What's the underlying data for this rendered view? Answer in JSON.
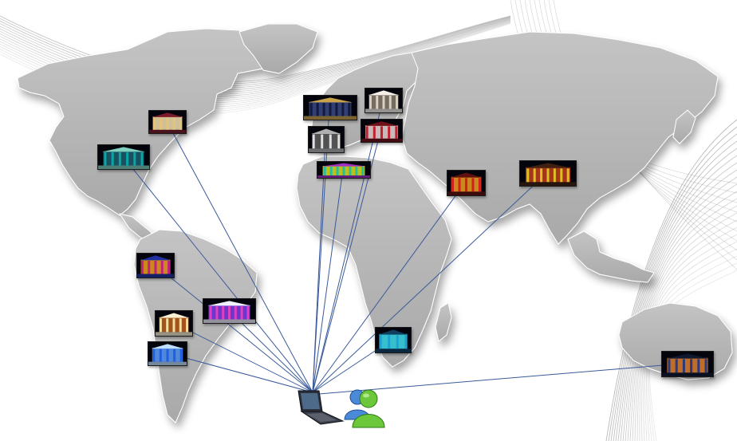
{
  "scene": {
    "background": "#ffffff",
    "map_color": "#b7b7b7",
    "map_border_color": "#ffffff",
    "swoosh_color": "#8c8c8c",
    "link_color": "#3a5a9a"
  },
  "hub": {
    "device_icon": "laptop-icon",
    "user_icon": "messenger-users-icon"
  },
  "locations": [
    {
      "id": "usa-east",
      "palette": [
        "#e6c27a",
        "#f3e3b0",
        "#7a1a2a"
      ],
      "subject": "lit-classical-facade"
    },
    {
      "id": "usa-south",
      "palette": [
        "#0aa5a5",
        "#1d5f70",
        "#7fd0c0"
      ],
      "subject": "teal-lit-building"
    },
    {
      "id": "europe-north",
      "palette": [
        "#131a3a",
        "#3a4a8a",
        "#c9a24a"
      ],
      "subject": "night-skyline"
    },
    {
      "id": "europe-center",
      "palette": [
        "#d8d0c0",
        "#8a8070",
        "#f4f0e8"
      ],
      "subject": "stone-archway"
    },
    {
      "id": "europe-west",
      "palette": [
        "#e0e0e0",
        "#606060",
        "#b0b0b0"
      ],
      "subject": "arched-colonnade"
    },
    {
      "id": "europe-south",
      "palette": [
        "#c02030",
        "#f0d8d8",
        "#701018"
      ],
      "subject": "red-columned-temple"
    },
    {
      "id": "mediterranean",
      "palette": [
        "#20c0a0",
        "#e0e020",
        "#a030c0"
      ],
      "subject": "colorful-projection"
    },
    {
      "id": "middle-east",
      "palette": [
        "#d02020",
        "#f0a020",
        "#601010"
      ],
      "subject": "red-lit-facade"
    },
    {
      "id": "india",
      "palette": [
        "#e0c020",
        "#c04020",
        "#402010"
      ],
      "subject": "golden-palace"
    },
    {
      "id": "south-america-north",
      "palette": [
        "#c02080",
        "#f0a020",
        "#2030a0"
      ],
      "subject": "multicolor-church"
    },
    {
      "id": "brazil",
      "palette": [
        "#e040c0",
        "#8040f0",
        "#f0f0ff"
      ],
      "subject": "purple-lit-building"
    },
    {
      "id": "south-america-west",
      "palette": [
        "#f0e0a0",
        "#c06020",
        "#f8f0d0"
      ],
      "subject": "warm-facade"
    },
    {
      "id": "south-america-south",
      "palette": [
        "#2060e0",
        "#60a0ff",
        "#c0e0ff"
      ],
      "subject": "blue-cathedral"
    },
    {
      "id": "south-africa",
      "palette": [
        "#20a0d0",
        "#40e0f0",
        "#104060"
      ],
      "subject": "cyan-fountain"
    },
    {
      "id": "australia",
      "palette": [
        "#2a3a7a",
        "#e08030",
        "#101830"
      ],
      "subject": "city-facade-night"
    }
  ]
}
